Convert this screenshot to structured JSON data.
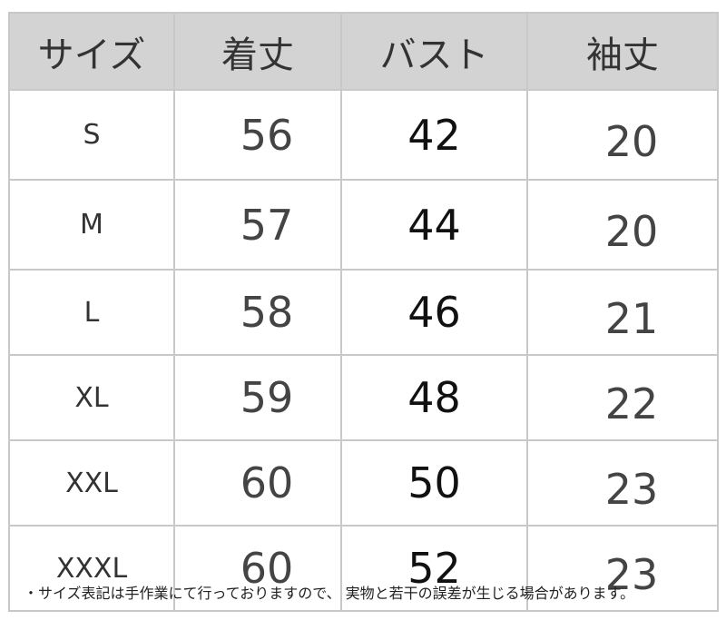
{
  "table": {
    "headers": [
      "サイズ",
      "着丈",
      "バスト",
      "袖丈"
    ],
    "rows": [
      [
        "S",
        "56",
        "42",
        "20"
      ],
      [
        "M",
        "57",
        "44",
        "20"
      ],
      [
        "L",
        "58",
        "46",
        "21"
      ],
      [
        "XL",
        "59",
        "48",
        "22"
      ],
      [
        "XXL",
        "60",
        "50",
        "23"
      ],
      [
        "XXXL",
        "60",
        "52",
        "23"
      ]
    ]
  },
  "note": "・サイズ表記は手作業にて行っておりますので、 実物と若干の誤差が生じる場合があります。"
}
